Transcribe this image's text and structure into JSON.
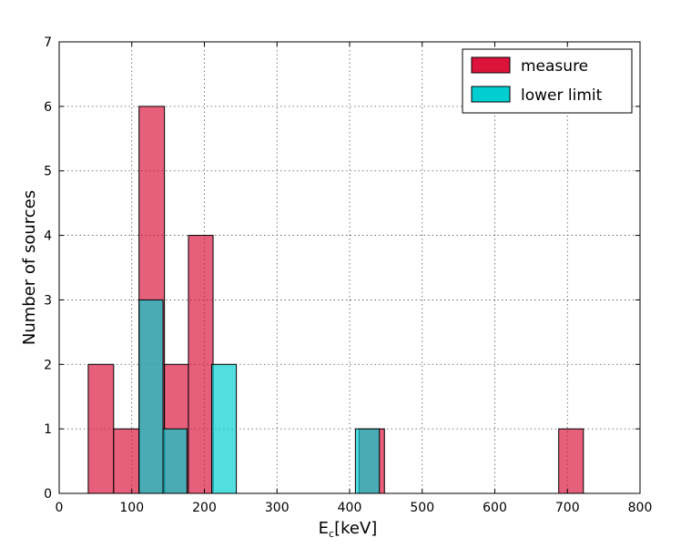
{
  "chart_data": {
    "type": "bar",
    "xlabel_main": "E",
    "xlabel_sub": "c",
    "xlabel_unit": "[keV]",
    "ylabel": "Number of sources",
    "xlim": [
      0,
      800
    ],
    "ylim": [
      0,
      7
    ],
    "xticks": [
      0,
      100,
      200,
      300,
      400,
      500,
      600,
      700,
      800
    ],
    "yticks": [
      0,
      1,
      2,
      3,
      4,
      5,
      6,
      7
    ],
    "grid": true,
    "legend_position": "top-right",
    "series": [
      {
        "name": "measure",
        "color": "#dc143c",
        "bins": [
          {
            "x0": 40,
            "x1": 75,
            "value": 2
          },
          {
            "x0": 75,
            "x1": 110,
            "value": 1
          },
          {
            "x0": 110,
            "x1": 145,
            "value": 6
          },
          {
            "x0": 145,
            "x1": 178,
            "value": 2
          },
          {
            "x0": 178,
            "x1": 212,
            "value": 4
          },
          {
            "x0": 413,
            "x1": 448,
            "value": 1
          },
          {
            "x0": 688,
            "x1": 722,
            "value": 1
          }
        ]
      },
      {
        "name": "lower limit",
        "color": "#00ced1",
        "bins": [
          {
            "x0": 110,
            "x1": 143,
            "value": 3
          },
          {
            "x0": 143,
            "x1": 176,
            "value": 1
          },
          {
            "x0": 210,
            "x1": 244,
            "value": 2
          },
          {
            "x0": 408,
            "x1": 441,
            "value": 1
          }
        ]
      }
    ]
  }
}
